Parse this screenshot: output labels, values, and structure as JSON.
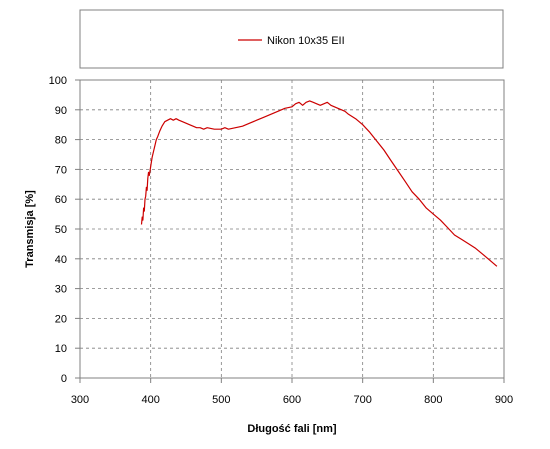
{
  "chart_data": {
    "type": "line",
    "xlabel": "Długość fali [nm]",
    "ylabel": "Transmisja [%]",
    "xlim": [
      300,
      900
    ],
    "ylim": [
      0,
      100
    ],
    "xticks": [
      300,
      400,
      500,
      600,
      700,
      800,
      900
    ],
    "yticks": [
      0,
      10,
      20,
      30,
      40,
      50,
      60,
      70,
      80,
      90,
      100
    ],
    "grid": true,
    "legend": "top",
    "series": [
      {
        "name": "Nikon 10x35 EII",
        "color": "#cc0000",
        "x": [
          387,
          388,
          389,
          390,
          391,
          392,
          393,
          394,
          395,
          396,
          397,
          398,
          400,
          402,
          404,
          406,
          408,
          410,
          413,
          416,
          420,
          424,
          428,
          432,
          436,
          440,
          445,
          450,
          455,
          460,
          465,
          470,
          475,
          480,
          490,
          500,
          505,
          510,
          520,
          530,
          540,
          550,
          560,
          570,
          580,
          590,
          600,
          605,
          610,
          615,
          620,
          625,
          630,
          635,
          640,
          645,
          650,
          655,
          660,
          665,
          670,
          675,
          680,
          690,
          700,
          710,
          720,
          730,
          740,
          750,
          760,
          770,
          780,
          790,
          800,
          810,
          820,
          830,
          840,
          850,
          860,
          870,
          880,
          890
        ],
        "y": [
          51.5,
          54,
          53,
          57,
          56,
          60,
          61,
          64,
          63,
          67,
          69,
          68,
          71,
          74,
          76,
          78,
          80,
          81,
          83,
          84.5,
          86,
          86.5,
          87,
          86.5,
          87,
          86.5,
          86,
          85.5,
          85,
          84.5,
          84,
          84,
          83.5,
          84,
          83.5,
          83.5,
          84,
          83.5,
          84,
          84.5,
          85.5,
          86.5,
          87.5,
          88.5,
          89.5,
          90.5,
          91,
          92,
          92.5,
          91.5,
          92.5,
          93,
          92.5,
          92,
          91.5,
          92,
          92.5,
          91.5,
          91,
          90.5,
          90,
          89.5,
          88.5,
          87,
          85,
          82.5,
          79.5,
          76.5,
          73,
          69.5,
          66,
          62.5,
          60,
          57,
          55,
          53,
          50.5,
          48,
          46.5,
          45,
          43.5,
          41.5,
          39.5,
          37.5
        ]
      }
    ]
  }
}
